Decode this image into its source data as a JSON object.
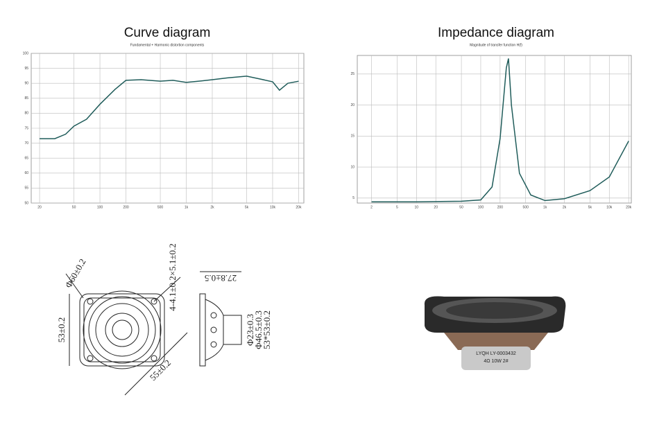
{
  "chart_data": [
    {
      "type": "line",
      "title": "Curve diagram",
      "subtitle": "Fundamental + Harmonic distortion components",
      "x": [
        20,
        30,
        40,
        50,
        70,
        100,
        150,
        200,
        300,
        500,
        700,
        1000,
        1500,
        2000,
        3000,
        5000,
        7000,
        10000,
        12000,
        15000,
        20000
      ],
      "series": [
        {
          "color": "#1f5c5a",
          "values": [
            71.5,
            71.5,
            73,
            75.7,
            78,
            83,
            88,
            91,
            91.2,
            90.7,
            91,
            90.3,
            90.8,
            91.2,
            91.8,
            92.4,
            91.5,
            90.5,
            87.7,
            90,
            90.7
          ]
        }
      ],
      "xscale": "log",
      "xlim": [
        16,
        23000
      ],
      "ylim": [
        50,
        100
      ],
      "xticks": [
        20,
        50,
        100,
        200,
        500,
        {
          "value": 1000,
          "label": "1k"
        },
        {
          "value": 2000,
          "label": "2k"
        },
        {
          "value": 5000,
          "label": "5k"
        },
        {
          "value": 10000,
          "label": "10k"
        },
        {
          "value": 20000,
          "label": "20k"
        }
      ],
      "yticks": [
        50,
        55,
        60,
        65,
        70,
        75,
        80,
        85,
        90,
        95,
        100
      ],
      "grid": true
    },
    {
      "type": "line",
      "title": "Impedance diagram",
      "subtitle": "Magnitude of transfer function H(f)",
      "x": [
        2,
        10,
        50,
        100,
        150,
        200,
        250,
        270,
        300,
        400,
        600,
        1000,
        2000,
        5000,
        10000,
        20000
      ],
      "series": [
        {
          "color": "#1f5c5a",
          "values": [
            4.4,
            4.4,
            4.5,
            4.7,
            6.8,
            14.6,
            26,
            27.5,
            20,
            9,
            5.5,
            4.6,
            4.9,
            6.2,
            8.4,
            14.2
          ]
        }
      ],
      "xscale": "log",
      "xlim": [
        1.2,
        22000
      ],
      "ylim": [
        4.2,
        28
      ],
      "xticks": [
        2,
        5,
        10,
        20,
        50,
        100,
        200,
        500,
        {
          "value": 1000,
          "label": "1k"
        },
        {
          "value": 2000,
          "label": "2k"
        },
        {
          "value": 5000,
          "label": "5k"
        },
        {
          "value": 10000,
          "label": "10k"
        },
        {
          "value": 20000,
          "label": "20k"
        }
      ],
      "yticks": [
        5,
        10,
        15,
        20,
        25
      ],
      "grid": true
    }
  ],
  "drawing": {
    "labels": [
      "Φ60±0.2",
      "4-4.1±0.2×5.1±0.2",
      "53±0.2",
      "55±0.2",
      "27.8±0.5",
      "Φ23±0.3",
      "Φ46.5±0.3",
      "53*53±0.2"
    ]
  },
  "photo": {
    "brand": "LYQH",
    "model": "LY-0003432",
    "spec": "4Ω 10W 2#"
  }
}
